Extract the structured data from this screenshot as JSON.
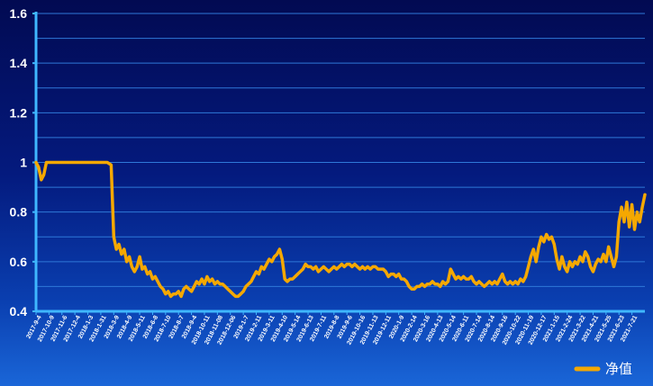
{
  "chart_data": {
    "type": "line",
    "title": "",
    "xlabel": "",
    "ylabel": "",
    "ylim": [
      0.4,
      1.6
    ],
    "yticks": [
      "0.4",
      "0.6",
      "0.8",
      "1",
      "1.2",
      "1.4",
      "1.6"
    ],
    "grid": true,
    "legend_position": "bottom-right",
    "colors": {
      "line": "#f5a800",
      "axis": "#3fb7ff",
      "grid": "#2f78d8",
      "text": "#ffffff"
    },
    "categories": [
      "2017-9-4",
      "2017-10-9",
      "2017-11-6",
      "2017-12-4",
      "2018-1-3",
      "2018-1-31",
      "2018-3-9",
      "2018-4-9",
      "2018-5-11",
      "2018-6-8",
      "2018-7-10",
      "2018-8-7",
      "2018-9-4",
      "2018-10-11",
      "2018-11-08",
      "2018-12-06",
      "2019-1-7",
      "2019-2-11",
      "2019-3-11",
      "2019-4-10",
      "2019-5-14",
      "2019-6-13",
      "2019-7-11",
      "2019-8-8",
      "2019-9-6",
      "2019-10-16",
      "2019-11-13",
      "2019-12-11",
      "2020-1-9",
      "2020-2-14",
      "2020-3-16",
      "2020-4-13",
      "2020-5-14",
      "2020-6-11",
      "2020-7-14",
      "2020-8-14",
      "2020-9-16",
      "2020-10-22",
      "2020-11-19",
      "2020-12-17",
      "2021-1-15",
      "2021-2-24",
      "2021-3-22",
      "2021-4-21",
      "2021-5-25",
      "2021-6-23",
      "2021-7-21"
    ],
    "series": [
      {
        "name": "净值",
        "points": [
          [
            0,
            1.0
          ],
          [
            0.2,
            0.98
          ],
          [
            0.4,
            0.93
          ],
          [
            0.6,
            0.95
          ],
          [
            0.8,
            1.0
          ],
          [
            2,
            1.0
          ],
          [
            4,
            1.0
          ],
          [
            5.5,
            1.0
          ],
          [
            5.8,
            0.99
          ],
          [
            6.0,
            0.7
          ],
          [
            6.2,
            0.65
          ],
          [
            6.4,
            0.67
          ],
          [
            6.6,
            0.63
          ],
          [
            6.8,
            0.65
          ],
          [
            7.0,
            0.6
          ],
          [
            7.2,
            0.62
          ],
          [
            7.4,
            0.58
          ],
          [
            7.6,
            0.56
          ],
          [
            7.8,
            0.58
          ],
          [
            8.0,
            0.62
          ],
          [
            8.2,
            0.57
          ],
          [
            8.4,
            0.58
          ],
          [
            8.6,
            0.55
          ],
          [
            8.8,
            0.56
          ],
          [
            9.0,
            0.53
          ],
          [
            9.2,
            0.54
          ],
          [
            9.4,
            0.52
          ],
          [
            9.6,
            0.5
          ],
          [
            9.8,
            0.49
          ],
          [
            10.0,
            0.47
          ],
          [
            10.2,
            0.48
          ],
          [
            10.4,
            0.46
          ],
          [
            10.6,
            0.47
          ],
          [
            10.8,
            0.47
          ],
          [
            11.0,
            0.48
          ],
          [
            11.2,
            0.46
          ],
          [
            11.4,
            0.49
          ],
          [
            11.6,
            0.5
          ],
          [
            11.8,
            0.49
          ],
          [
            12.0,
            0.48
          ],
          [
            12.2,
            0.5
          ],
          [
            12.4,
            0.52
          ],
          [
            12.6,
            0.51
          ],
          [
            12.8,
            0.53
          ],
          [
            13.0,
            0.51
          ],
          [
            13.2,
            0.54
          ],
          [
            13.4,
            0.52
          ],
          [
            13.6,
            0.53
          ],
          [
            13.8,
            0.51
          ],
          [
            14.0,
            0.52
          ],
          [
            14.2,
            0.51
          ],
          [
            14.4,
            0.51
          ],
          [
            14.6,
            0.5
          ],
          [
            14.8,
            0.49
          ],
          [
            15.0,
            0.48
          ],
          [
            15.2,
            0.47
          ],
          [
            15.4,
            0.46
          ],
          [
            15.6,
            0.46
          ],
          [
            15.8,
            0.47
          ],
          [
            16.0,
            0.48
          ],
          [
            16.2,
            0.5
          ],
          [
            16.4,
            0.51
          ],
          [
            16.6,
            0.52
          ],
          [
            16.8,
            0.54
          ],
          [
            17.0,
            0.56
          ],
          [
            17.2,
            0.55
          ],
          [
            17.4,
            0.58
          ],
          [
            17.6,
            0.57
          ],
          [
            17.8,
            0.59
          ],
          [
            18.0,
            0.61
          ],
          [
            18.2,
            0.6
          ],
          [
            18.4,
            0.62
          ],
          [
            18.6,
            0.63
          ],
          [
            18.8,
            0.65
          ],
          [
            19.0,
            0.61
          ],
          [
            19.2,
            0.53
          ],
          [
            19.4,
            0.52
          ],
          [
            19.6,
            0.53
          ],
          [
            19.8,
            0.53
          ],
          [
            20.0,
            0.54
          ],
          [
            20.2,
            0.55
          ],
          [
            20.4,
            0.56
          ],
          [
            20.6,
            0.57
          ],
          [
            20.8,
            0.59
          ],
          [
            21.0,
            0.58
          ],
          [
            21.2,
            0.58
          ],
          [
            21.4,
            0.57
          ],
          [
            21.6,
            0.58
          ],
          [
            21.8,
            0.56
          ],
          [
            22.0,
            0.57
          ],
          [
            22.2,
            0.58
          ],
          [
            22.4,
            0.57
          ],
          [
            22.6,
            0.56
          ],
          [
            22.8,
            0.57
          ],
          [
            23.0,
            0.58
          ],
          [
            23.2,
            0.57
          ],
          [
            23.4,
            0.58
          ],
          [
            23.6,
            0.59
          ],
          [
            23.8,
            0.58
          ],
          [
            24.0,
            0.59
          ],
          [
            24.2,
            0.59
          ],
          [
            24.4,
            0.58
          ],
          [
            24.6,
            0.59
          ],
          [
            24.8,
            0.58
          ],
          [
            25.0,
            0.57
          ],
          [
            25.2,
            0.58
          ],
          [
            25.4,
            0.57
          ],
          [
            25.6,
            0.58
          ],
          [
            25.8,
            0.57
          ],
          [
            26.0,
            0.58
          ],
          [
            26.2,
            0.58
          ],
          [
            26.4,
            0.57
          ],
          [
            26.6,
            0.57
          ],
          [
            26.8,
            0.57
          ],
          [
            27.0,
            0.56
          ],
          [
            27.2,
            0.54
          ],
          [
            27.4,
            0.55
          ],
          [
            27.6,
            0.55
          ],
          [
            27.8,
            0.54
          ],
          [
            28.0,
            0.55
          ],
          [
            28.2,
            0.53
          ],
          [
            28.4,
            0.53
          ],
          [
            28.6,
            0.52
          ],
          [
            28.8,
            0.5
          ],
          [
            29.0,
            0.49
          ],
          [
            29.2,
            0.49
          ],
          [
            29.4,
            0.5
          ],
          [
            29.6,
            0.5
          ],
          [
            29.8,
            0.51
          ],
          [
            30.0,
            0.5
          ],
          [
            30.2,
            0.51
          ],
          [
            30.4,
            0.51
          ],
          [
            30.6,
            0.52
          ],
          [
            30.8,
            0.51
          ],
          [
            31.0,
            0.51
          ],
          [
            31.2,
            0.5
          ],
          [
            31.4,
            0.52
          ],
          [
            31.6,
            0.51
          ],
          [
            31.8,
            0.52
          ],
          [
            32.0,
            0.57
          ],
          [
            32.2,
            0.55
          ],
          [
            32.4,
            0.53
          ],
          [
            32.6,
            0.54
          ],
          [
            32.8,
            0.53
          ],
          [
            33.0,
            0.54
          ],
          [
            33.2,
            0.53
          ],
          [
            33.4,
            0.53
          ],
          [
            33.6,
            0.54
          ],
          [
            33.8,
            0.52
          ],
          [
            34.0,
            0.51
          ],
          [
            34.2,
            0.52
          ],
          [
            34.4,
            0.51
          ],
          [
            34.6,
            0.5
          ],
          [
            34.8,
            0.51
          ],
          [
            35.0,
            0.52
          ],
          [
            35.2,
            0.51
          ],
          [
            35.4,
            0.52
          ],
          [
            35.6,
            0.51
          ],
          [
            35.8,
            0.53
          ],
          [
            36.0,
            0.55
          ],
          [
            36.2,
            0.52
          ],
          [
            36.4,
            0.51
          ],
          [
            36.6,
            0.52
          ],
          [
            36.8,
            0.51
          ],
          [
            37.0,
            0.52
          ],
          [
            37.2,
            0.51
          ],
          [
            37.4,
            0.53
          ],
          [
            37.6,
            0.52
          ],
          [
            37.8,
            0.54
          ],
          [
            38.0,
            0.58
          ],
          [
            38.2,
            0.62
          ],
          [
            38.4,
            0.65
          ],
          [
            38.6,
            0.6
          ],
          [
            38.8,
            0.66
          ],
          [
            39.0,
            0.7
          ],
          [
            39.2,
            0.68
          ],
          [
            39.4,
            0.71
          ],
          [
            39.6,
            0.69
          ],
          [
            39.8,
            0.7
          ],
          [
            40.0,
            0.67
          ],
          [
            40.2,
            0.61
          ],
          [
            40.4,
            0.57
          ],
          [
            40.6,
            0.62
          ],
          [
            40.8,
            0.58
          ],
          [
            41.0,
            0.56
          ],
          [
            41.2,
            0.6
          ],
          [
            41.4,
            0.58
          ],
          [
            41.6,
            0.6
          ],
          [
            41.8,
            0.59
          ],
          [
            42.0,
            0.62
          ],
          [
            42.2,
            0.6
          ],
          [
            42.4,
            0.64
          ],
          [
            42.6,
            0.62
          ],
          [
            42.8,
            0.58
          ],
          [
            43.0,
            0.56
          ],
          [
            43.2,
            0.59
          ],
          [
            43.4,
            0.61
          ],
          [
            43.6,
            0.6
          ],
          [
            43.8,
            0.63
          ],
          [
            44.0,
            0.6
          ],
          [
            44.2,
            0.66
          ],
          [
            44.4,
            0.62
          ],
          [
            44.6,
            0.58
          ],
          [
            44.8,
            0.62
          ],
          [
            45.0,
            0.76
          ],
          [
            45.2,
            0.82
          ],
          [
            45.4,
            0.76
          ],
          [
            45.6,
            0.84
          ],
          [
            45.8,
            0.74
          ],
          [
            46.0,
            0.83
          ],
          [
            46.2,
            0.73
          ],
          [
            46.4,
            0.8
          ],
          [
            46.6,
            0.76
          ],
          [
            46.8,
            0.82
          ],
          [
            47.0,
            0.87
          ]
        ]
      }
    ]
  }
}
